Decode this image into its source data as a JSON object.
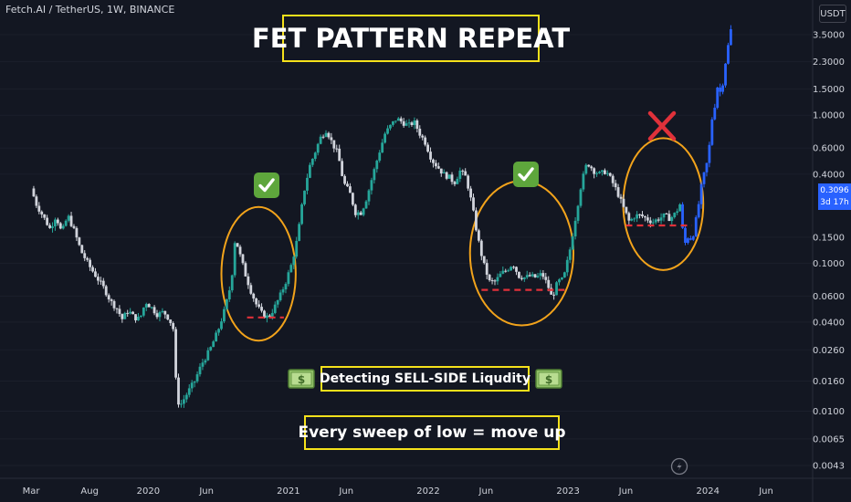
{
  "header": {
    "symbol": "Fetch.AI / TetherUS, 1W, BINANCE",
    "currency": "USDT"
  },
  "annotations": {
    "title": "FET PATTERN REPEAT",
    "subtitle": "Detecting SELL-SIDE Liqudity",
    "sweep_text": "Every sweep of low = move up"
  },
  "price_tag": {
    "price": "0.3096",
    "countdown": "3d 17h"
  },
  "icons": {
    "check": "check-mark-icon",
    "cross": "cross-mark-icon",
    "money": "money-banknote-icon",
    "logo": "tradingview-logo-icon"
  },
  "colors": {
    "background": "#131722",
    "up_candle": "#26a69a",
    "down_candle": "#d1d4dc",
    "projection": "#2962ff",
    "circle": "#f2a31b",
    "liquidity_line": "#e0313a",
    "title_border": "#f5e11b",
    "axis_text": "#d1d4dc"
  },
  "chart_data": {
    "type": "line",
    "scale": "log",
    "x_axis_labels": [
      "Mar",
      "Aug",
      "2020",
      "Jun",
      "2021",
      "Jun",
      "2022",
      "Jun",
      "2023",
      "Jun",
      "2024",
      "Jun"
    ],
    "y_axis_labels": [
      "3.5000",
      "2.3000",
      "1.5000",
      "1.0000",
      "0.6000",
      "0.4000",
      "0.1500",
      "0.1000",
      "0.0600",
      "0.0400",
      "0.0260",
      "0.0160",
      "0.0100",
      "0.0065",
      "0.0043"
    ],
    "y_ticks": [
      3.5,
      2.3,
      1.5,
      1.0,
      0.6,
      0.4,
      0.15,
      0.1,
      0.06,
      0.04,
      0.026,
      0.016,
      0.01,
      0.0065,
      0.0043
    ],
    "ylim": [
      0.0038,
      4.6
    ],
    "xlim": [
      "2019-03-01",
      "2024-07-01"
    ],
    "series": [
      {
        "values": [
          [
            "2019-03-01",
            0.32
          ],
          [
            "2019-03-15",
            0.25
          ],
          [
            "2019-04-05",
            0.2
          ],
          [
            "2019-04-20",
            0.17
          ],
          [
            "2019-05-05",
            0.21
          ],
          [
            "2019-05-20",
            0.16
          ],
          [
            "2019-06-05",
            0.21
          ],
          [
            "2019-06-20",
            0.17
          ],
          [
            "2019-07-10",
            0.12
          ],
          [
            "2019-08-01",
            0.095
          ],
          [
            "2019-08-20",
            0.08
          ],
          [
            "2019-09-10",
            0.066
          ],
          [
            "2019-09-25",
            0.055
          ],
          [
            "2019-10-10",
            0.05
          ],
          [
            "2019-10-25",
            0.042
          ],
          [
            "2019-11-10",
            0.048
          ],
          [
            "2019-11-25",
            0.043
          ],
          [
            "2019-12-10",
            0.042
          ],
          [
            "2019-12-25",
            0.055
          ],
          [
            "2020-01-10",
            0.05
          ],
          [
            "2020-01-25",
            0.045
          ],
          [
            "2020-02-10",
            0.047
          ],
          [
            "2020-02-25",
            0.042
          ],
          [
            "2020-03-08",
            0.035
          ],
          [
            "2020-03-15",
            0.012
          ],
          [
            "2020-03-25",
            0.011
          ],
          [
            "2020-04-10",
            0.013
          ],
          [
            "2020-05-01",
            0.016
          ],
          [
            "2020-05-20",
            0.021
          ],
          [
            "2020-06-10",
            0.026
          ],
          [
            "2020-07-01",
            0.035
          ],
          [
            "2020-07-20",
            0.05
          ],
          [
            "2020-08-05",
            0.075
          ],
          [
            "2020-08-15",
            0.15
          ],
          [
            "2020-08-25",
            0.12
          ],
          [
            "2020-09-10",
            0.085
          ],
          [
            "2020-09-25",
            0.065
          ],
          [
            "2020-10-10",
            0.052
          ],
          [
            "2020-10-25",
            0.045
          ],
          [
            "2020-11-10",
            0.043
          ],
          [
            "2020-11-25",
            0.05
          ],
          [
            "2020-12-10",
            0.06
          ],
          [
            "2020-12-25",
            0.075
          ],
          [
            "2021-01-10",
            0.1
          ],
          [
            "2021-01-25",
            0.15
          ],
          [
            "2021-02-10",
            0.3
          ],
          [
            "2021-02-25",
            0.45
          ],
          [
            "2021-03-10",
            0.55
          ],
          [
            "2021-03-25",
            0.7
          ],
          [
            "2021-04-10",
            0.8
          ],
          [
            "2021-04-25",
            0.65
          ],
          [
            "2021-05-10",
            0.55
          ],
          [
            "2021-05-25",
            0.35
          ],
          [
            "2021-06-10",
            0.3
          ],
          [
            "2021-06-25",
            0.22
          ],
          [
            "2021-07-10",
            0.22
          ],
          [
            "2021-07-25",
            0.28
          ],
          [
            "2021-08-10",
            0.4
          ],
          [
            "2021-08-25",
            0.55
          ],
          [
            "2021-09-10",
            0.75
          ],
          [
            "2021-09-25",
            0.85
          ],
          [
            "2021-10-10",
            0.95
          ],
          [
            "2021-10-25",
            0.9
          ],
          [
            "2021-11-10",
            0.85
          ],
          [
            "2021-11-25",
            0.9
          ],
          [
            "2021-12-10",
            0.75
          ],
          [
            "2021-12-25",
            0.65
          ],
          [
            "2022-01-10",
            0.5
          ],
          [
            "2022-01-25",
            0.45
          ],
          [
            "2022-02-10",
            0.4
          ],
          [
            "2022-02-25",
            0.38
          ],
          [
            "2022-03-10",
            0.35
          ],
          [
            "2022-03-25",
            0.42
          ],
          [
            "2022-04-10",
            0.38
          ],
          [
            "2022-04-25",
            0.25
          ],
          [
            "2022-05-10",
            0.15
          ],
          [
            "2022-05-25",
            0.1
          ],
          [
            "2022-06-10",
            0.075
          ],
          [
            "2022-06-25",
            0.075
          ],
          [
            "2022-07-10",
            0.085
          ],
          [
            "2022-07-25",
            0.09
          ],
          [
            "2022-08-10",
            0.1
          ],
          [
            "2022-08-25",
            0.082
          ],
          [
            "2022-09-10",
            0.08
          ],
          [
            "2022-09-25",
            0.082
          ],
          [
            "2022-10-10",
            0.08
          ],
          [
            "2022-10-25",
            0.085
          ],
          [
            "2022-11-10",
            0.07
          ],
          [
            "2022-11-20",
            0.058
          ],
          [
            "2022-12-05",
            0.075
          ],
          [
            "2022-12-20",
            0.078
          ],
          [
            "2023-01-05",
            0.12
          ],
          [
            "2023-01-20",
            0.2
          ],
          [
            "2023-02-05",
            0.35
          ],
          [
            "2023-02-20",
            0.48
          ],
          [
            "2023-03-10",
            0.42
          ],
          [
            "2023-03-25",
            0.4
          ],
          [
            "2023-04-10",
            0.42
          ],
          [
            "2023-04-25",
            0.36
          ],
          [
            "2023-05-10",
            0.3
          ],
          [
            "2023-05-25",
            0.24
          ],
          [
            "2023-06-10",
            0.19
          ],
          [
            "2023-06-25",
            0.21
          ],
          [
            "2023-07-10",
            0.21
          ],
          [
            "2023-07-25",
            0.2
          ],
          [
            "2023-08-10",
            0.19
          ],
          [
            "2023-08-25",
            0.2
          ],
          [
            "2023-09-10",
            0.21
          ],
          [
            "2023-09-25",
            0.2
          ],
          [
            "2023-10-10",
            0.22
          ],
          [
            "2023-10-20",
            0.25
          ]
        ]
      },
      {
        "name": "projection",
        "values": [
          [
            "2023-10-20",
            0.25
          ],
          [
            "2023-10-28",
            0.16
          ],
          [
            "2023-11-05",
            0.13
          ],
          [
            "2023-11-12",
            0.16
          ],
          [
            "2023-11-20",
            0.14
          ],
          [
            "2023-11-28",
            0.18
          ],
          [
            "2023-12-05",
            0.22
          ],
          [
            "2023-12-12",
            0.3
          ],
          [
            "2023-12-20",
            0.38
          ],
          [
            "2023-12-28",
            0.45
          ],
          [
            "2024-01-05",
            0.62
          ],
          [
            "2024-01-12",
            0.95
          ],
          [
            "2024-01-20",
            1.2
          ],
          [
            "2024-01-28",
            1.7
          ],
          [
            "2024-02-05",
            1.3
          ],
          [
            "2024-02-12",
            2.0
          ],
          [
            "2024-02-20",
            2.6
          ],
          [
            "2024-02-28",
            3.6
          ],
          [
            "2024-03-05",
            4.1
          ]
        ]
      }
    ],
    "liquidity_levels": [
      {
        "from": "2020-09-15",
        "to": "2020-12-20",
        "value": 0.043
      },
      {
        "from": "2022-05-20",
        "to": "2022-12-25",
        "value": 0.066
      },
      {
        "from": "2023-06-01",
        "to": "2023-11-20",
        "value": 0.18
      }
    ],
    "highlight_circles": [
      {
        "from": "2020-07-10",
        "to": "2021-01-20",
        "low": 0.03,
        "high": 0.24,
        "marker": "check"
      },
      {
        "from": "2022-04-20",
        "to": "2023-01-15",
        "low": 0.038,
        "high": 0.36,
        "marker": "check"
      },
      {
        "from": "2023-05-25",
        "to": "2023-12-20",
        "low": 0.09,
        "high": 0.7,
        "marker": "cross"
      }
    ]
  }
}
